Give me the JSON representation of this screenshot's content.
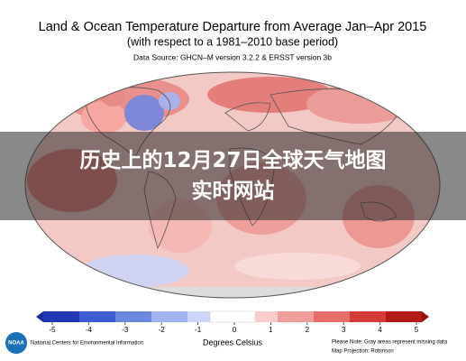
{
  "header": {
    "title": "Land & Ocean Temperature Departure from Average Jan–Apr 2015",
    "subtitle": "(with respect to a 1981–2010 base period)",
    "source": "Data Source: GHCN–M version 3.2.2 & ERSST version 3b"
  },
  "overlay": {
    "text": "历史上的12月27日全球天气地图实时网站"
  },
  "colorbar": {
    "ticks": [
      -5,
      -4,
      -3,
      -2,
      -1,
      0,
      1,
      2,
      3,
      4,
      5
    ],
    "range": [
      -5,
      5
    ],
    "label": "Degrees Celsius"
  },
  "footer": {
    "logo": "NOAA",
    "center": "National Centers for Environmental Information",
    "note": "Please Note: Gray areas represent missing data",
    "projection": "Map Projection: Robinson"
  }
}
